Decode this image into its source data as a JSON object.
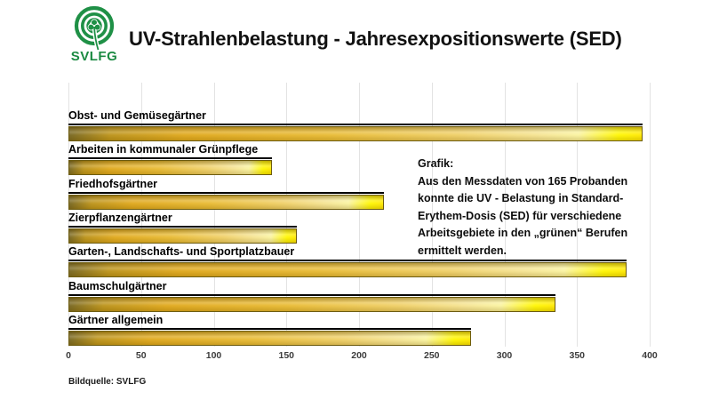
{
  "header": {
    "logo_text": "SVLFG",
    "logo_color": "#1f9046",
    "title": "UV-Strahlenbelastung - Jahresexpositionswerte (SED)"
  },
  "chart_data": {
    "type": "bar",
    "orientation": "horizontal",
    "title": "UV-Strahlenbelastung - Jahresexpositionswerte (SED)",
    "unit": "SED",
    "categories": [
      "Obst- und Gemüsegärtner",
      "Arbeiten in kommunaler Grünpflege",
      "Friedhofsgärtner",
      "Zierpflanzengärtner",
      "Garten-, Landschafts- und Sportplatzbauer",
      "Baumschulgärtner",
      "Gärtner allgemein"
    ],
    "values": [
      395,
      140,
      217,
      157,
      384,
      335,
      277
    ],
    "x_ticks": [
      0,
      50,
      100,
      150,
      200,
      250,
      300,
      350,
      400
    ],
    "xlim": [
      0,
      407
    ],
    "grid": true,
    "legend": null,
    "bar_color_start": "#77661f",
    "bar_color_mid": "#e8ba32",
    "bar_color_end": "#ffee00"
  },
  "annotation": {
    "heading": "Grafik:",
    "lines": [
      "Aus den Messdaten von 165 Probanden",
      "konnte die UV - Belastung in Standard-",
      "Erythem-Dosis (SED) für verschiedene",
      "Arbeitsgebiete in den „grünen“ Berufen",
      "ermittelt werden."
    ]
  },
  "footer": {
    "source": "Bildquelle: SVLFG"
  }
}
